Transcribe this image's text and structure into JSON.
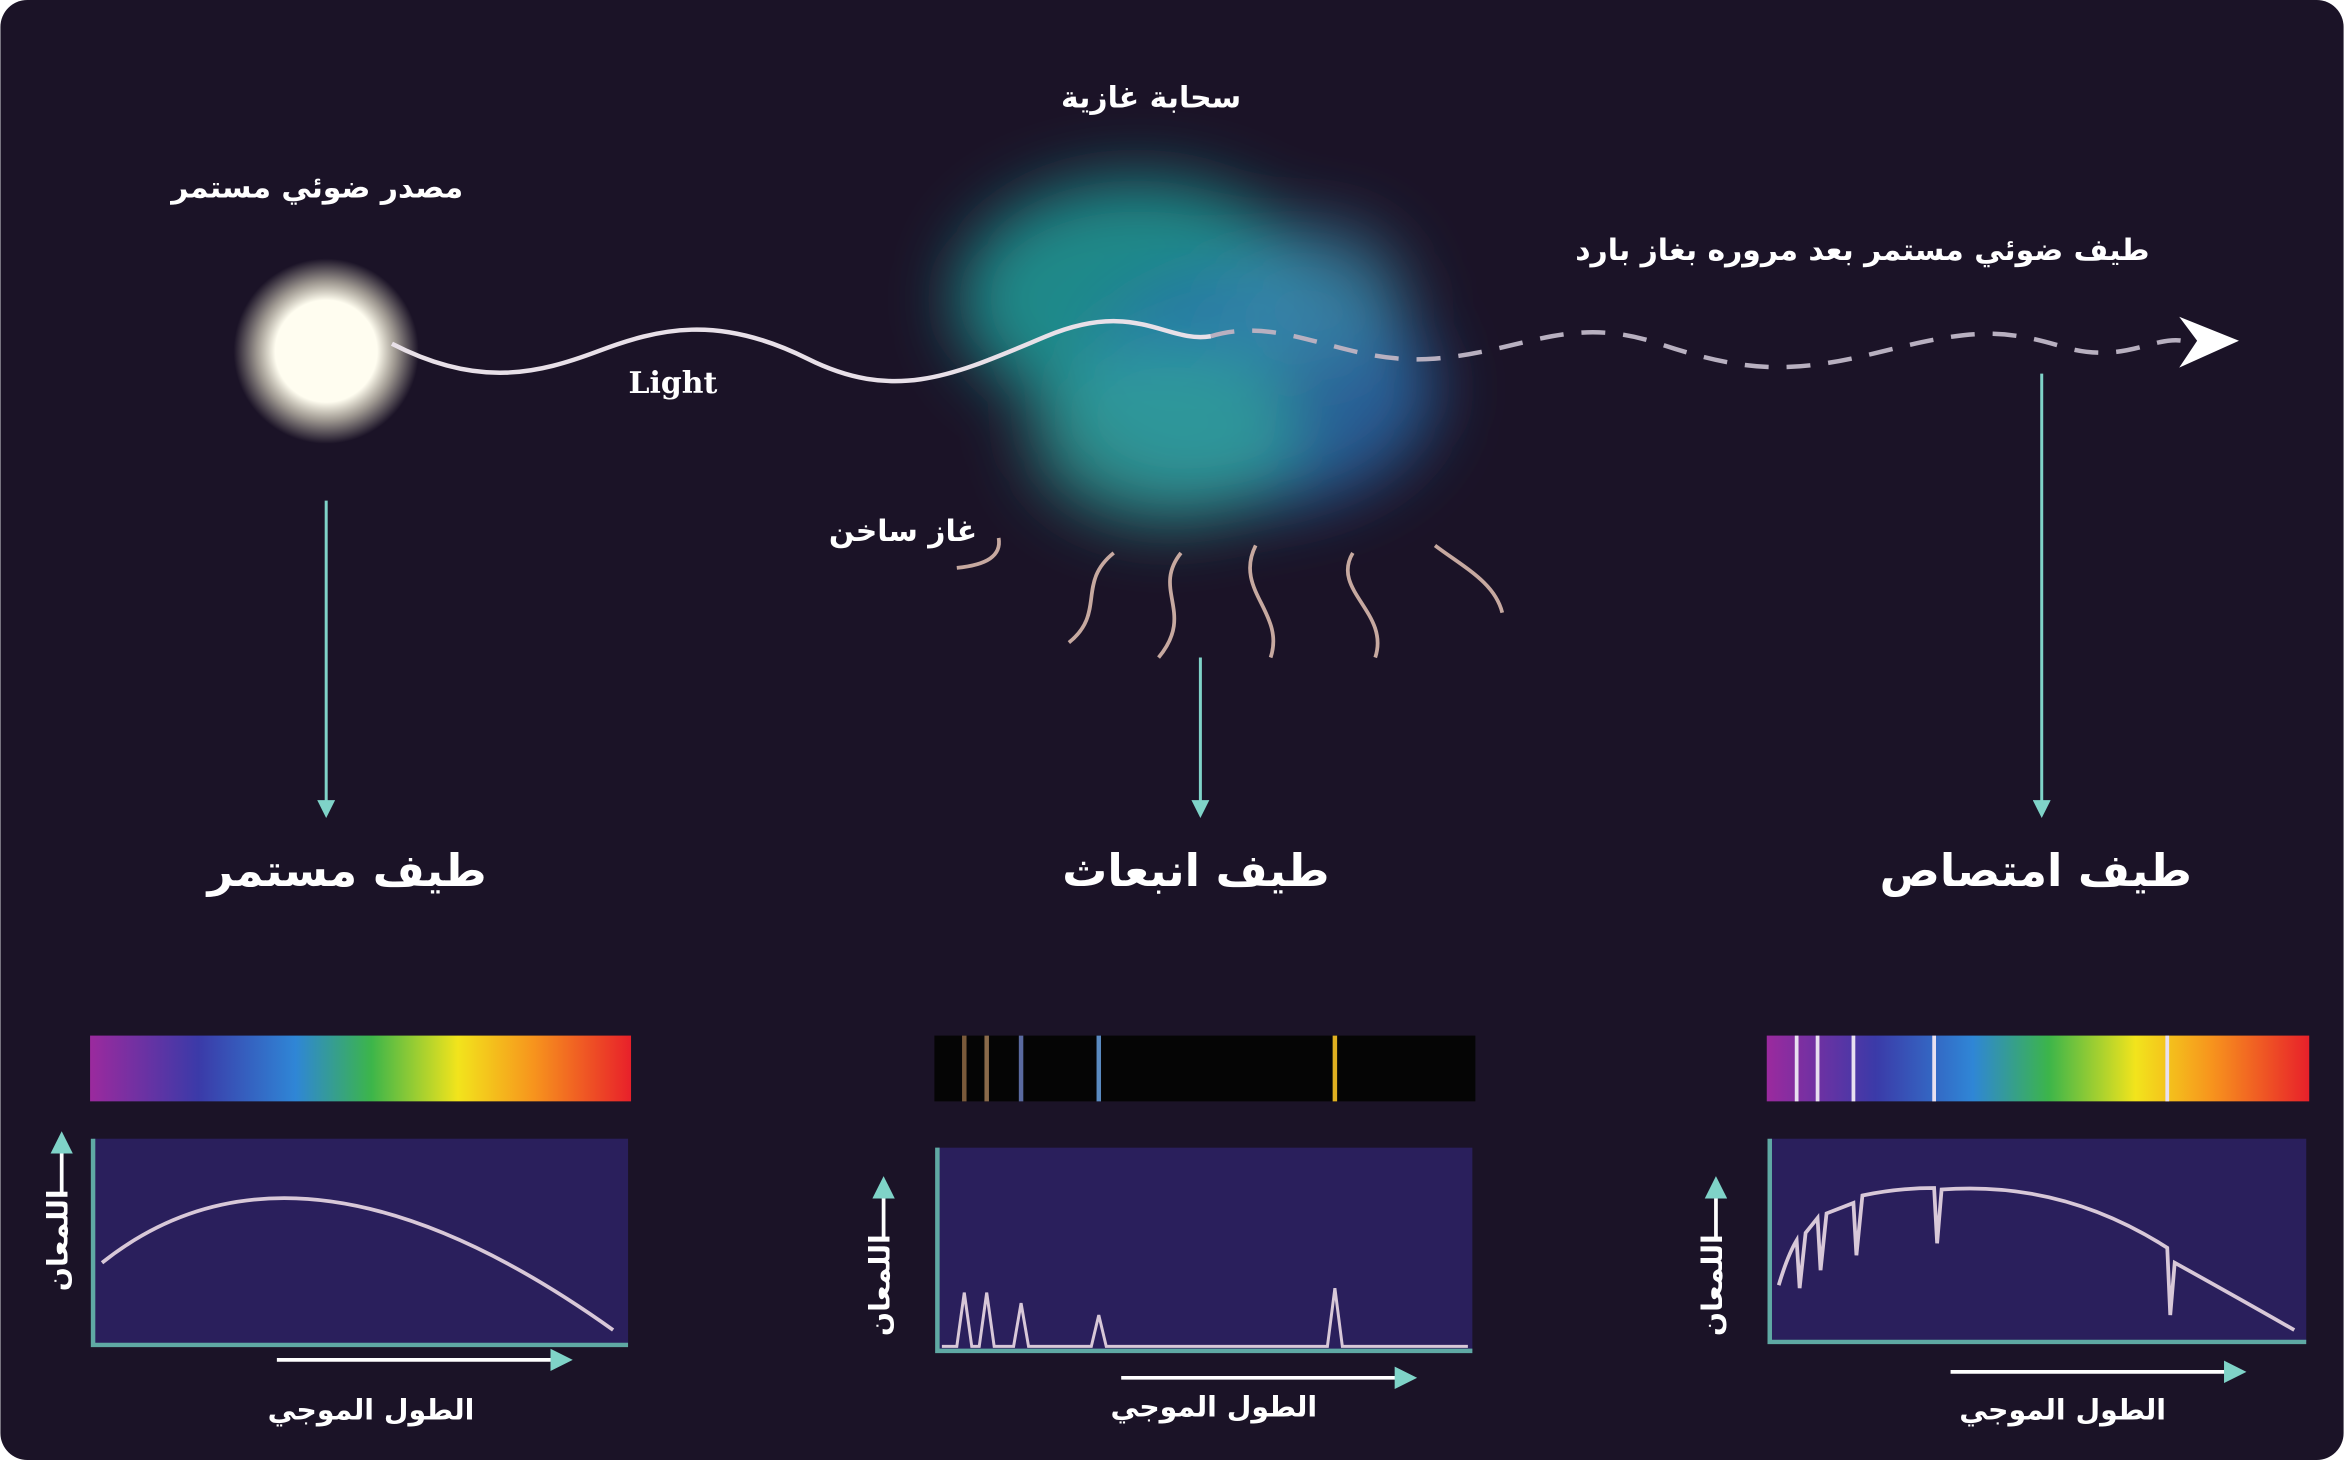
{
  "source": {
    "label": "مصدر ضوئي مستمر"
  },
  "cloud": {
    "label": "سحابة غازية"
  },
  "light": {
    "label": "Light"
  },
  "hot_gas": {
    "label": "غاز ساخن"
  },
  "output": {
    "label": "طيف ضوئي مستمر بعد مروره بغاز بارد"
  },
  "panels": [
    {
      "title": "طيف مستمر",
      "y_label": "اللمعان",
      "x_label": "الطول الموجي"
    },
    {
      "title": "طيف انبعاث",
      "y_label": "اللمعان",
      "x_label": "الطول الموجي"
    },
    {
      "title": "طيف امتصاص",
      "y_label": "اللمعان",
      "x_label": "الطول الموجي"
    }
  ]
}
